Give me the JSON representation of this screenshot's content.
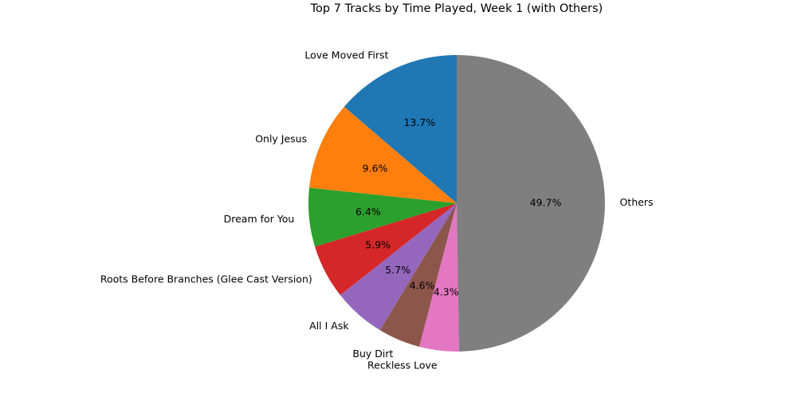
{
  "chart_data": {
    "type": "pie",
    "title": "Top 7 Tracks by Time Played, Week 1 (with Others)",
    "slices": [
      {
        "label": "Love Moved First",
        "value": 13.7,
        "pct_label": "13.7%",
        "color": "#1f77b4"
      },
      {
        "label": "Only Jesus",
        "value": 9.6,
        "pct_label": "9.6%",
        "color": "#ff7f0e"
      },
      {
        "label": "Dream for You",
        "value": 6.4,
        "pct_label": "6.4%",
        "color": "#2ca02c"
      },
      {
        "label": "Roots Before Branches (Glee Cast Version)",
        "value": 5.9,
        "pct_label": "5.9%",
        "color": "#d62728"
      },
      {
        "label": "All I Ask",
        "value": 5.7,
        "pct_label": "5.7%",
        "color": "#9467bd"
      },
      {
        "label": "Buy Dirt",
        "value": 4.6,
        "pct_label": "4.6%",
        "color": "#8c564b"
      },
      {
        "label": "Reckless Love",
        "value": 4.3,
        "pct_label": "4.3%",
        "color": "#e377c2"
      },
      {
        "label": "Others",
        "value": 49.7,
        "pct_label": "49.7%",
        "color": "#7f7f7f"
      }
    ],
    "start_angle_deg": 90,
    "direction": "counterclockwise",
    "legend": "none"
  }
}
